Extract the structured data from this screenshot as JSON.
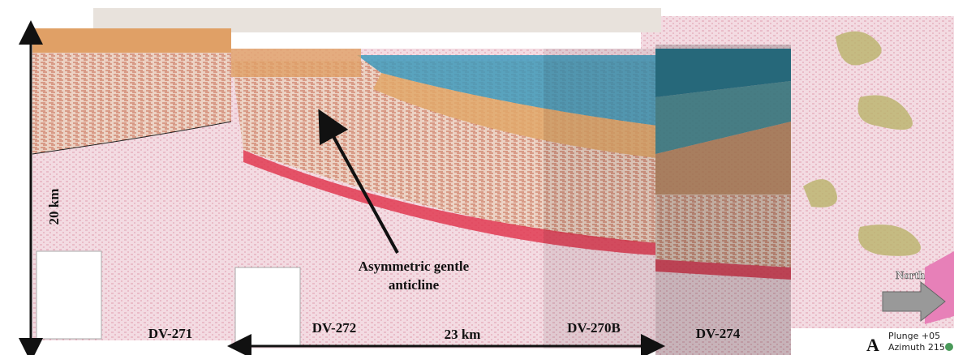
{
  "scale": {
    "vertical": "20 km",
    "horizontal": "23 km"
  },
  "sections": [
    "DV-271",
    "DV-272",
    "DV-270B",
    "DV-274"
  ],
  "annotation": [
    "Asymmetric gentle",
    "anticline"
  ],
  "map": {
    "direction": "North"
  },
  "orientation": {
    "label": "A",
    "plunge": "Plunge +05",
    "azimuth": "Azimuth 215"
  }
}
